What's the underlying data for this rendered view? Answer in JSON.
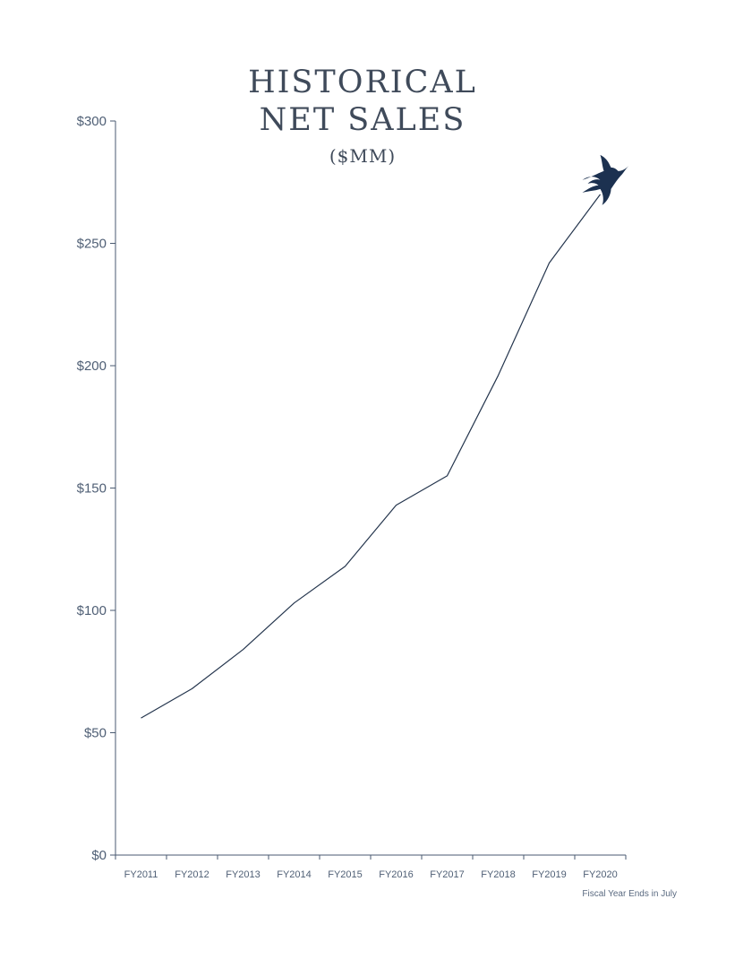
{
  "header": {
    "title_line1": "HISTORICAL",
    "title_line2": "NET SALES",
    "title_line3": "($MM)"
  },
  "footnote": "Fiscal Year Ends in July",
  "colors": {
    "axis": "#4a5a70",
    "line": "#24354d",
    "accent": "#1c3150",
    "text": "#4f5f75"
  },
  "icons": {
    "bird": "flying-duck-icon"
  },
  "chart_data": {
    "type": "line",
    "title": "HISTORICAL NET SALES ($MM)",
    "xlabel": "",
    "ylabel": "",
    "categories": [
      "FY2011",
      "FY2012",
      "FY2013",
      "FY2014",
      "FY2015",
      "FY2016",
      "FY2017",
      "FY2018",
      "FY2019",
      "FY2020"
    ],
    "values": [
      56,
      68,
      84,
      103,
      118,
      143,
      155,
      196,
      242,
      270
    ],
    "ylim": [
      0,
      300
    ],
    "yticks": [
      0,
      50,
      100,
      150,
      200,
      250,
      300
    ],
    "ytick_labels": [
      "$0",
      "$50",
      "$100",
      "$150",
      "$200",
      "$250",
      "$300"
    ],
    "grid": false,
    "legend": "none"
  }
}
